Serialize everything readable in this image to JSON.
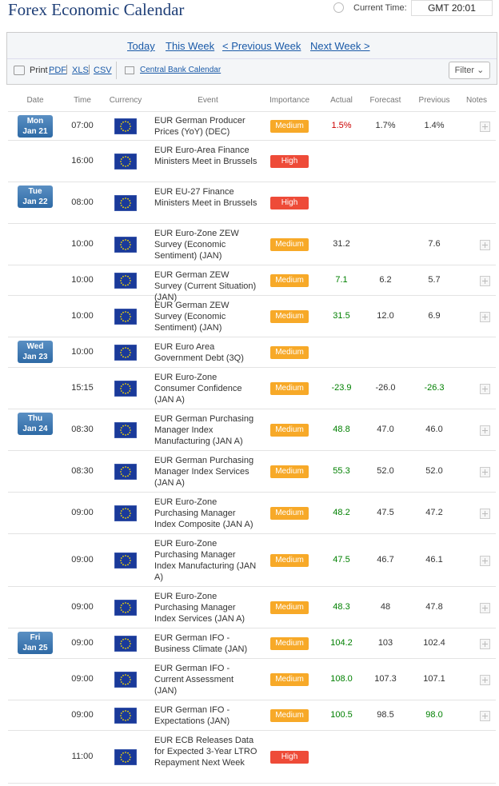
{
  "header": {
    "title": "Forex Economic Calendar",
    "time_label": "Current Time:",
    "time_value": "GMT 20:01"
  },
  "nav": {
    "links": [
      "Today",
      "This Week",
      "< Previous Week",
      "Next Week >"
    ],
    "print": "Print",
    "formats": [
      "PDF",
      "XLS",
      "CSV"
    ],
    "central_bank": "Central Bank Calendar",
    "filter": "Filter"
  },
  "table": {
    "columns": [
      "Date",
      "Time",
      "Currency",
      "Event",
      "Importance",
      "Actual",
      "Forecast",
      "Previous",
      "Notes"
    ],
    "rows": [
      {
        "day": "Mon",
        "date": "Jan 21",
        "time": "07:00",
        "event": "EUR German Producer Prices (YoY) (DEC)",
        "importance": "Medium",
        "actual": "1.5%",
        "actual_color": "#cc0000",
        "forecast": "1.7%",
        "previous": "1.4%",
        "notes": true
      },
      {
        "time": "16:00",
        "event": "EUR Euro-Area Finance Ministers Meet in Brussels",
        "importance": "High",
        "notes": false
      },
      {
        "day": "Tue",
        "date": "Jan 22",
        "time": "08:00",
        "event": "EUR EU-27 Finance Ministers Meet in Brussels",
        "importance": "High",
        "notes": false
      },
      {
        "time": "10:00",
        "event": "EUR Euro-Zone ZEW Survey (Economic Sentiment) (JAN)",
        "importance": "Medium",
        "actual": "31.2",
        "previous": "7.6",
        "notes": true
      },
      {
        "time": "10:00",
        "event": "EUR German ZEW Survey (Current Situation) (JAN)",
        "importance": "Medium",
        "actual": "7.1",
        "actual_color": "#008000",
        "forecast": "6.2",
        "previous": "5.7",
        "notes": true
      },
      {
        "time": "10:00",
        "event": "EUR German ZEW Survey (Economic Sentiment) (JAN)",
        "importance": "Medium",
        "actual": "31.5",
        "actual_color": "#008000",
        "forecast": "12.0",
        "previous": "6.9",
        "notes": true
      },
      {
        "day": "Wed",
        "date": "Jan 23",
        "time": "10:00",
        "event": "EUR Euro Area Government Debt (3Q)",
        "importance": "Medium",
        "notes": false
      },
      {
        "time": "15:15",
        "event": "EUR Euro-Zone Consumer Confidence (JAN A)",
        "importance": "Medium",
        "actual": "-23.9",
        "actual_color": "#008000",
        "forecast": "-26.0",
        "previous": "-26.3",
        "previous_color": "#008000",
        "notes": true
      },
      {
        "day": "Thu",
        "date": "Jan 24",
        "time": "08:30",
        "event": "EUR German Purchasing Manager Index Manufacturing (JAN A)",
        "importance": "Medium",
        "actual": "48.8",
        "actual_color": "#008000",
        "forecast": "47.0",
        "previous": "46.0",
        "notes": true
      },
      {
        "time": "08:30",
        "event": "EUR German Purchasing Manager Index Services (JAN A)",
        "importance": "Medium",
        "actual": "55.3",
        "actual_color": "#008000",
        "forecast": "52.0",
        "previous": "52.0",
        "notes": true
      },
      {
        "time": "09:00",
        "event": "EUR Euro-Zone Purchasing Manager Index Composite (JAN A)",
        "importance": "Medium",
        "actual": "48.2",
        "actual_color": "#008000",
        "forecast": "47.5",
        "previous": "47.2",
        "notes": true
      },
      {
        "time": "09:00",
        "event": "EUR Euro-Zone Purchasing Manager Index Manufacturing (JAN A)",
        "importance": "Medium",
        "actual": "47.5",
        "actual_color": "#008000",
        "forecast": "46.7",
        "previous": "46.1",
        "notes": true
      },
      {
        "time": "09:00",
        "event": "EUR Euro-Zone Purchasing Manager Index Services (JAN A)",
        "importance": "Medium",
        "actual": "48.3",
        "actual_color": "#008000",
        "forecast": "48",
        "previous": "47.8",
        "notes": true
      },
      {
        "day": "Fri",
        "date": "Jan 25",
        "time": "09:00",
        "event": "EUR German IFO - Business Climate (JAN)",
        "importance": "Medium",
        "actual": "104.2",
        "actual_color": "#008000",
        "forecast": "103",
        "previous": "102.4",
        "notes": true
      },
      {
        "time": "09:00",
        "event": "EUR German IFO - Current Assessment (JAN)",
        "importance": "Medium",
        "actual": "108.0",
        "actual_color": "#008000",
        "forecast": "107.3",
        "previous": "107.1",
        "notes": true
      },
      {
        "time": "09:00",
        "event": "EUR German IFO - Expectations (JAN)",
        "importance": "Medium",
        "actual": "100.5",
        "actual_color": "#008000",
        "forecast": "98.5",
        "previous": "98.0",
        "previous_color": "#008000",
        "notes": true
      },
      {
        "time": "11:00",
        "event": "EUR ECB Releases Data for Expected 3-Year LTRO Repayment Next Week",
        "importance": "High",
        "notes": false
      }
    ]
  }
}
